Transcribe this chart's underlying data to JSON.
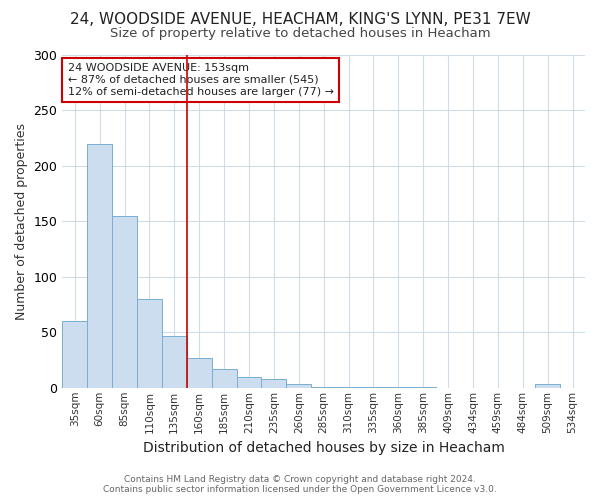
{
  "title1": "24, WOODSIDE AVENUE, HEACHAM, KING'S LYNN, PE31 7EW",
  "title2": "Size of property relative to detached houses in Heacham",
  "xlabel": "Distribution of detached houses by size in Heacham",
  "ylabel": "Number of detached properties",
  "footer1": "Contains HM Land Registry data © Crown copyright and database right 2024.",
  "footer2": "Contains public sector information licensed under the Open Government Licence v3.0.",
  "categories": [
    "35sqm",
    "60sqm",
    "85sqm",
    "110sqm",
    "135sqm",
    "160sqm",
    "185sqm",
    "210sqm",
    "235sqm",
    "260sqm",
    "285sqm",
    "310sqm",
    "335sqm",
    "360sqm",
    "385sqm",
    "409sqm",
    "434sqm",
    "459sqm",
    "484sqm",
    "509sqm",
    "534sqm"
  ],
  "values": [
    60,
    220,
    155,
    80,
    47,
    27,
    17,
    10,
    8,
    3,
    1,
    1,
    1,
    1,
    1,
    0,
    0,
    0,
    0,
    3,
    0
  ],
  "bar_color": "#ccddf0",
  "bar_edge_color": "#7aaed0",
  "ylim": [
    0,
    300
  ],
  "yticks": [
    0,
    50,
    100,
    150,
    200,
    250,
    300
  ],
  "annotation_text": "24 WOODSIDE AVENUE: 153sqm\n← 87% of detached houses are smaller (545)\n12% of semi-detached houses are larger (77) →",
  "annotation_box_color": "#ffffff",
  "annotation_box_edge": "#cc0000",
  "vline_color": "#cc0000",
  "vline_x": 4.5,
  "background_color": "#ffffff",
  "grid_color": "#d0dce8",
  "title1_fontsize": 11,
  "title2_fontsize": 9.5
}
